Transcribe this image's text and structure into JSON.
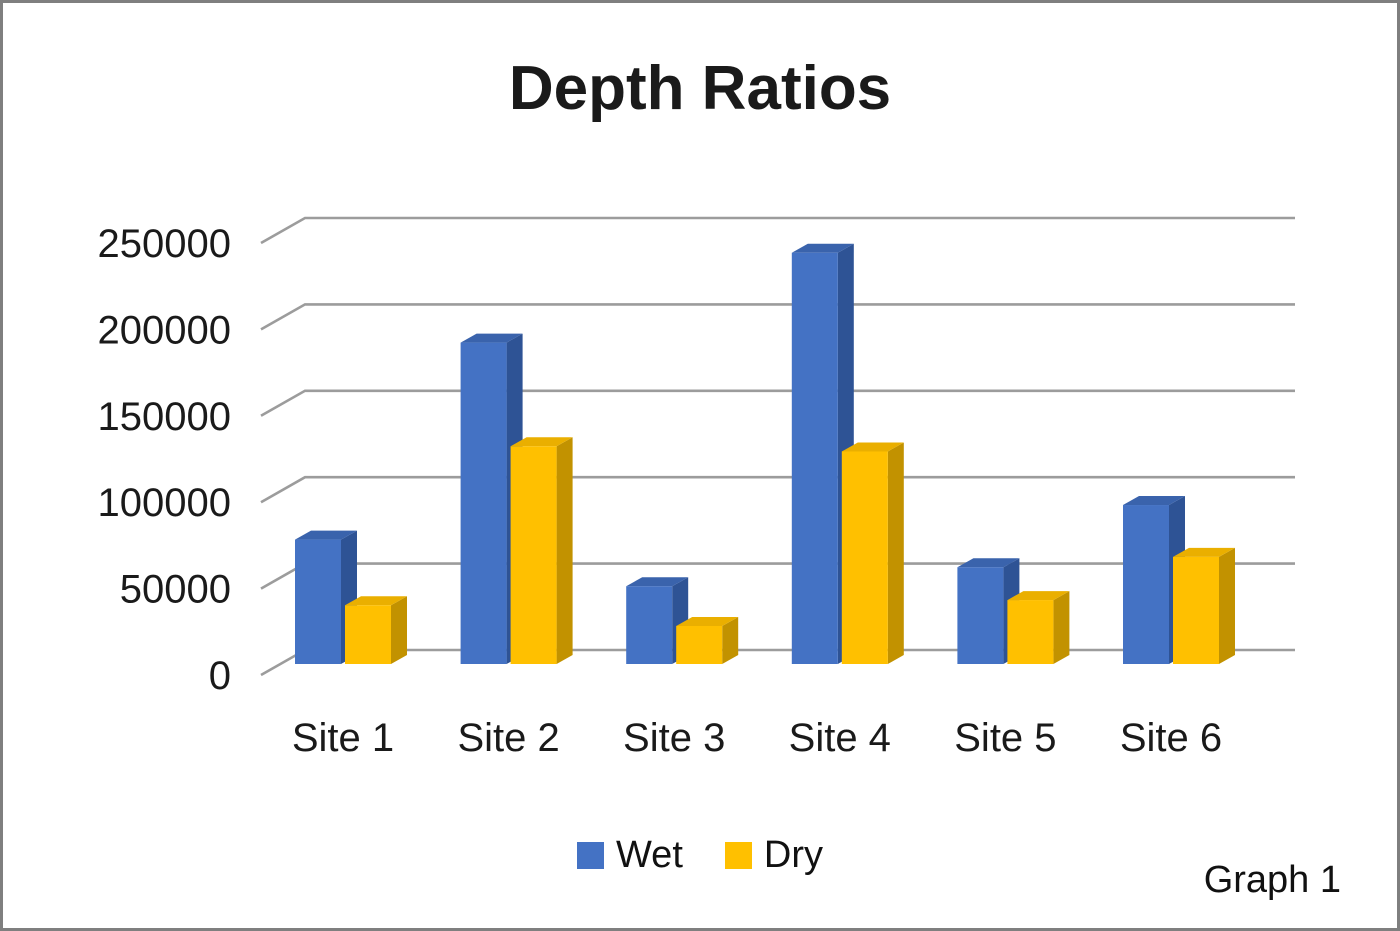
{
  "page": {
    "background": "#ffffff",
    "border_color": "#7f7f7f"
  },
  "chart_data": {
    "type": "bar",
    "variant": "3d-clustered-column",
    "title": "Depth Ratios",
    "caption": "Graph 1",
    "categories": [
      "Site 1",
      "Site 2",
      "Site 3",
      "Site 4",
      "Site 5",
      "Site 6"
    ],
    "series": [
      {
        "name": "Wet",
        "color": "#4472C4",
        "color_top": "#3A63AC",
        "color_side": "#2E5395",
        "values": [
          72000,
          186000,
          45000,
          238000,
          56000,
          92000
        ]
      },
      {
        "name": "Dry",
        "color": "#FFC000",
        "color_top": "#EAAF00",
        "color_side": "#C29200",
        "values": [
          34000,
          126000,
          22000,
          123000,
          37000,
          62000
        ]
      }
    ],
    "y_axis": {
      "min": 0,
      "max": 250000,
      "step": 50000,
      "tick_labels": [
        "0",
        "50000",
        "100000",
        "150000",
        "200000",
        "250000"
      ]
    },
    "x_label": "",
    "y_label": "",
    "gridlines": true,
    "gridline_color": "#9c9c9c",
    "text_color": "#1a1a1a",
    "legend_position": "bottom"
  }
}
